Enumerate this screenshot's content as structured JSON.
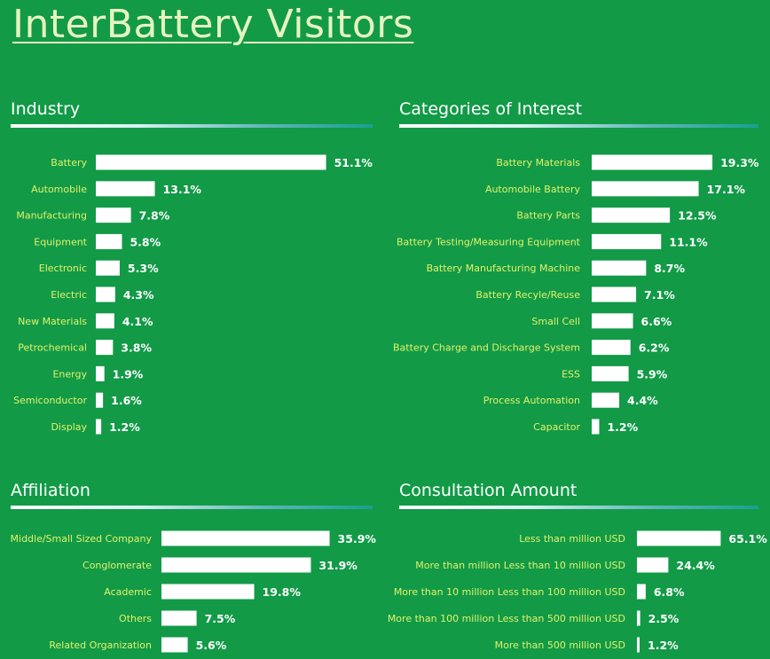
{
  "title": "InterBattery Visitors",
  "panels": {
    "industry": {
      "title": "Industry"
    },
    "categories": {
      "title": "Categories of Interest"
    },
    "affiliation": {
      "title": "Affiliation"
    },
    "consultation": {
      "title": "Consultation Amount"
    }
  },
  "colors": {
    "background": "#129a47",
    "bar": "#ffffff",
    "category_label": "#e2f26a",
    "value_label": "#ffffff"
  },
  "chart_data": [
    {
      "type": "bar",
      "orientation": "horizontal",
      "title": "Industry",
      "categories": [
        "Battery",
        "Automobile",
        "Manufacturing",
        "Equipment",
        "Electronic",
        "Electric",
        "New Materials",
        "Petrochemical",
        "Energy",
        "Semiconductor",
        "Display"
      ],
      "values": [
        51.1,
        13.1,
        7.8,
        5.8,
        5.3,
        4.3,
        4.1,
        3.8,
        1.9,
        1.6,
        1.2
      ],
      "value_labels": [
        "51.1%",
        "13.1%",
        "7.8%",
        "5.8%",
        "5.3%",
        "4.3%",
        "4.1%",
        "3.8%",
        "1.9%",
        "1.6%",
        "1.2%"
      ],
      "unit": "%",
      "grid": false
    },
    {
      "type": "bar",
      "orientation": "horizontal",
      "title": "Categories of Interest",
      "categories": [
        "Battery Materials",
        "Automobile Battery",
        "Battery Parts",
        "Battery Testing/Measuring Equipment",
        "Battery Manufacturing Machine",
        "Battery Recyle/Reuse",
        "Small Cell",
        "Battery Charge and Discharge System",
        "ESS",
        "Process Automation",
        "Capacitor"
      ],
      "values": [
        19.3,
        17.1,
        12.5,
        11.1,
        8.7,
        7.1,
        6.6,
        6.2,
        5.9,
        4.4,
        1.2
      ],
      "value_labels": [
        "19.3%",
        "17.1%",
        "12.5%",
        "11.1%",
        "8.7%",
        "7.1%",
        "6.6%",
        "6.2%",
        "5.9%",
        "4.4%",
        "1.2%"
      ],
      "unit": "%",
      "grid": false
    },
    {
      "type": "bar",
      "orientation": "horizontal",
      "title": "Affiliation",
      "categories": [
        "Middle/Small Sized Company",
        "Conglomerate",
        "Academic",
        "Others",
        "Related Organization"
      ],
      "values": [
        35.9,
        31.9,
        19.8,
        7.5,
        5.6
      ],
      "value_labels": [
        "35.9%",
        "31.9%",
        "19.8%",
        "7.5%",
        "5.6%"
      ],
      "unit": "%",
      "grid": false
    },
    {
      "type": "bar",
      "orientation": "horizontal",
      "title": "Consultation Amount",
      "categories": [
        "Less than million USD",
        "More than million Less than 10 million USD",
        "More than 10 million Less than 100 million USD",
        "More than 100 million Less than 500 million USD",
        "More than 500 million USD"
      ],
      "values": [
        65.1,
        24.4,
        6.8,
        2.5,
        1.2
      ],
      "value_labels": [
        "65.1%",
        "24.4%",
        "6.8%",
        "2.5%",
        "1.2%"
      ],
      "unit": "%",
      "grid": false
    }
  ]
}
